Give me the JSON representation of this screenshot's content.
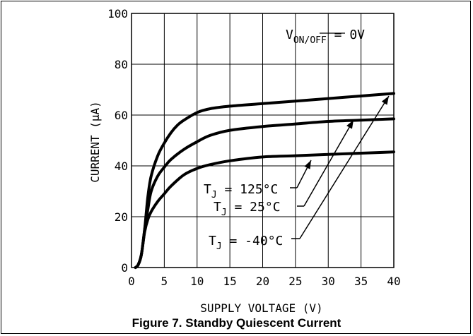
{
  "caption": "Figure 7. Standby Quiescent Current",
  "chart_data": {
    "type": "line",
    "xlabel": "SUPPLY VOLTAGE (V)",
    "ylabel": "CURRENT (µA)",
    "xlim": [
      0,
      40
    ],
    "ylim": [
      0,
      100
    ],
    "xticks": [
      "0",
      "5",
      "10",
      "15",
      "20",
      "25",
      "30",
      "35",
      "40"
    ],
    "yticks": [
      "0",
      "20",
      "40",
      "60",
      "80",
      "100"
    ],
    "grid": true,
    "condition": {
      "main": "V",
      "sub": "ON/OFF",
      "rest": " = 0V"
    },
    "series": [
      {
        "label_main": "T",
        "label_sub": "J",
        "label_rest": " = 125°C",
        "x": [
          0.6,
          1.0,
          1.5,
          2.0,
          2.5,
          3.0,
          4.0,
          5.0,
          6.0,
          7.0,
          8.0,
          10.0,
          12.0,
          15.0,
          20.0,
          25.0,
          30.0,
          35.0,
          40.0
        ],
        "y": [
          0,
          1,
          5,
          15,
          28,
          36,
          44,
          49,
          53,
          56,
          58,
          61,
          62.5,
          63.5,
          64.5,
          65.5,
          66.5,
          67.5,
          68.5
        ]
      },
      {
        "label_main": "T",
        "label_sub": "J",
        "label_rest": " = 25°C",
        "x": [
          0.6,
          1.0,
          1.5,
          2.0,
          2.5,
          3.0,
          4.0,
          5.0,
          6.0,
          8.0,
          10.0,
          12.0,
          15.0,
          20.0,
          25.0,
          30.0,
          35.0,
          40.0
        ],
        "y": [
          0,
          1,
          5,
          15,
          23,
          30,
          36,
          39.5,
          42.5,
          46.5,
          49.5,
          52,
          54,
          55.5,
          56.5,
          57.5,
          58,
          58.5
        ]
      },
      {
        "label_main": "T",
        "label_sub": "J",
        "label_rest": " = -40°C",
        "x": [
          0.6,
          1.0,
          1.5,
          2.0,
          2.5,
          3.0,
          4.0,
          5.0,
          6.0,
          8.0,
          10.0,
          12.0,
          15.0,
          20.0,
          25.0,
          30.0,
          35.0,
          40.0
        ],
        "y": [
          0,
          1,
          5,
          14,
          19,
          22,
          26,
          29,
          32,
          36.5,
          39,
          40.5,
          42,
          43.5,
          44,
          44.5,
          45,
          45.5
        ]
      }
    ]
  }
}
